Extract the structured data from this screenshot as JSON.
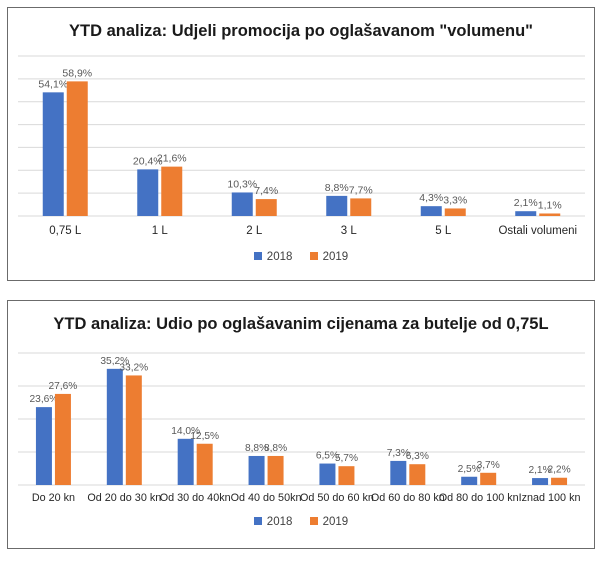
{
  "colors": {
    "2018": "#4472c4",
    "2019": "#ed7d31",
    "grid": "#d9d9d9",
    "label": "#595959"
  },
  "chart_data": [
    {
      "type": "bar",
      "title": "YTD analiza: Udjeli promocija po oglašavanom \"volumenu\"",
      "categories": [
        "0,75 L",
        "1 L",
        "2 L",
        "3 L",
        "5 L",
        "Ostali volumeni"
      ],
      "series": [
        {
          "name": "2018",
          "values": [
            54.1,
            20.4,
            10.3,
            8.8,
            4.3,
            2.1
          ],
          "labels": [
            "54,1%",
            "20,4%",
            "10,3%",
            "8,8%",
            "4,3%",
            "2,1%"
          ]
        },
        {
          "name": "2019",
          "values": [
            58.9,
            21.6,
            7.4,
            7.7,
            3.3,
            1.1
          ],
          "labels": [
            "58,9%",
            "21,6%",
            "7,4%",
            "7,7%",
            "3,3%",
            "1,1%"
          ]
        }
      ],
      "ylim": [
        0,
        70
      ],
      "grid": true,
      "legend": "bottom"
    },
    {
      "type": "bar",
      "title": "YTD analiza: Udio po oglašavanim cijenama za butelje od 0,75L",
      "categories": [
        "Do 20 kn",
        "Od 20 do 30 kn",
        "Od 30 do 40kn",
        "Od 40 do 50kn",
        "Od 50 do 60 kn",
        "Od 60 do 80 kn",
        "Od 80 do 100 kn",
        "Iznad 100 kn"
      ],
      "series": [
        {
          "name": "2018",
          "values": [
            23.6,
            35.2,
            14.0,
            8.8,
            6.5,
            7.3,
            2.5,
            2.1
          ],
          "labels": [
            "23,6%",
            "35,2%",
            "14,0%",
            "8,8%",
            "6,5%",
            "7,3%",
            "2,5%",
            "2,1%"
          ]
        },
        {
          "name": "2019",
          "values": [
            27.6,
            33.2,
            12.5,
            8.8,
            5.7,
            6.3,
            3.7,
            2.2
          ],
          "labels": [
            "27,6%",
            "33,2%",
            "12,5%",
            "8,8%",
            "5,7%",
            "6,3%",
            "3,7%",
            "2,2%"
          ]
        }
      ],
      "ylim": [
        0,
        40
      ],
      "grid": true,
      "legend": "bottom"
    }
  ]
}
